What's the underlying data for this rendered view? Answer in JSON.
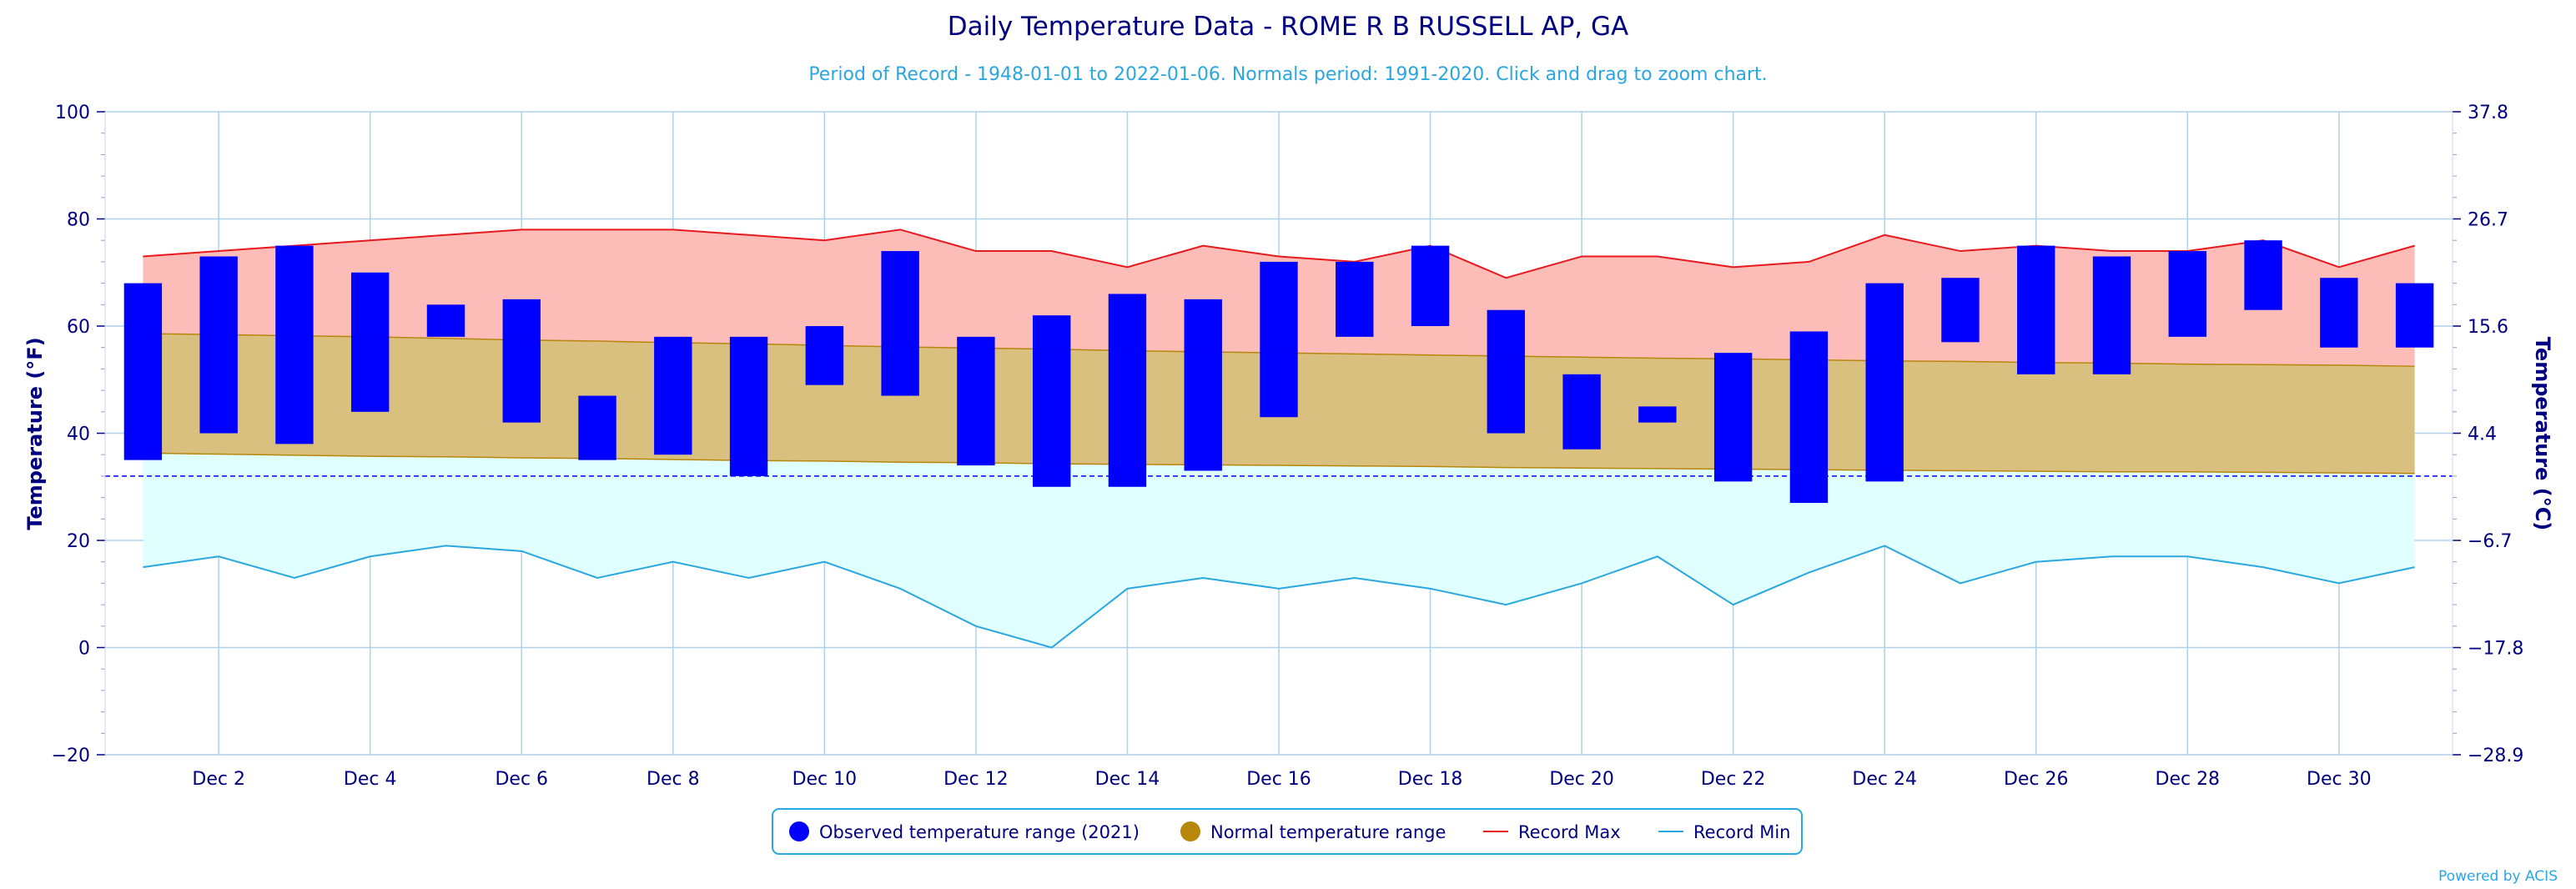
{
  "chart_data": {
    "type": "bar",
    "title": "Daily Temperature Data - ROME R B RUSSELL AP, GA",
    "subtitle": "Period of Record - 1948-01-01 to 2022-01-06. Normals period: 1991-2020. Click and drag to zoom chart.",
    "ylabel_left": "Temperature (°F)",
    "ylabel_right": "Temperature (°C)",
    "ylim": [
      -20,
      100
    ],
    "yticks_left": [
      "100",
      "80",
      "60",
      "40",
      "20",
      "0",
      "−20"
    ],
    "yticks_right": [
      "37.8",
      "26.7",
      "15.6",
      "4.4",
      "−6.7",
      "−17.8",
      "−28.9"
    ],
    "xlim": [
      0.5,
      31.5
    ],
    "xticks": [
      "Dec 2",
      "Dec 4",
      "Dec 6",
      "Dec 8",
      "Dec 10",
      "Dec 12",
      "Dec 14",
      "Dec 16",
      "Dec 18",
      "Dec 20",
      "Dec 22",
      "Dec 24",
      "Dec 26",
      "Dec 28",
      "Dec 30"
    ],
    "days": [
      1,
      2,
      3,
      4,
      5,
      6,
      7,
      8,
      9,
      10,
      11,
      12,
      13,
      14,
      15,
      16,
      17,
      18,
      19,
      20,
      21,
      22,
      23,
      24,
      25,
      26,
      27,
      28,
      29,
      30,
      31
    ],
    "freezing_line": 32,
    "grid": true,
    "legend_position": "bottom-center",
    "series": [
      {
        "name": "Observed temperature range (2021)",
        "color": "#0000ff",
        "low": [
          35,
          40,
          38,
          44,
          58,
          42,
          35,
          36,
          32,
          49,
          47,
          34,
          30,
          30,
          33,
          43,
          58,
          60,
          40,
          37,
          42,
          31,
          27,
          31,
          57,
          51,
          51,
          58,
          63,
          56,
          56
        ],
        "high": [
          68,
          73,
          75,
          70,
          64,
          65,
          47,
          58,
          58,
          60,
          74,
          58,
          62,
          66,
          65,
          72,
          72,
          75,
          63,
          51,
          45,
          55,
          59,
          68,
          69,
          75,
          73,
          74,
          76,
          69,
          68
        ]
      },
      {
        "name": "Normal temperature range",
        "color": "#b8860b",
        "fill": "#d9c07f",
        "low": [
          36.3,
          36.1,
          35.9,
          35.7,
          35.6,
          35.4,
          35.3,
          35.1,
          34.9,
          34.8,
          34.6,
          34.5,
          34.3,
          34.2,
          34.1,
          34.0,
          33.9,
          33.8,
          33.6,
          33.5,
          33.4,
          33.3,
          33.2,
          33.1,
          33.0,
          32.9,
          32.8,
          32.8,
          32.7,
          32.6,
          32.5
        ],
        "high": [
          58.6,
          58.4,
          58.2,
          58.0,
          57.7,
          57.4,
          57.2,
          56.9,
          56.7,
          56.4,
          56.1,
          55.9,
          55.7,
          55.4,
          55.2,
          55.0,
          54.8,
          54.6,
          54.4,
          54.2,
          54.0,
          53.9,
          53.7,
          53.5,
          53.4,
          53.2,
          53.1,
          52.9,
          52.8,
          52.7,
          52.5
        ]
      },
      {
        "name": "Record Max",
        "color": "#e8191c",
        "fill": "#fcbcb8",
        "values": [
          73,
          74,
          75,
          76,
          77,
          78,
          78,
          78,
          77,
          76,
          78,
          74,
          74,
          71,
          75,
          73,
          72,
          75,
          69,
          73,
          73,
          71,
          72,
          77,
          74,
          75,
          74,
          74,
          76,
          71,
          75
        ]
      },
      {
        "name": "Record Min",
        "color": "#29a8e0",
        "fill": "#e0ffff",
        "values": [
          15,
          17,
          13,
          17,
          19,
          18,
          13,
          16,
          13,
          16,
          11,
          4,
          0,
          11,
          13,
          11,
          13,
          11,
          8,
          12,
          17,
          8,
          14,
          19,
          12,
          16,
          17,
          17,
          15,
          12,
          15
        ]
      }
    ]
  },
  "credit": "Powered by ACIS"
}
